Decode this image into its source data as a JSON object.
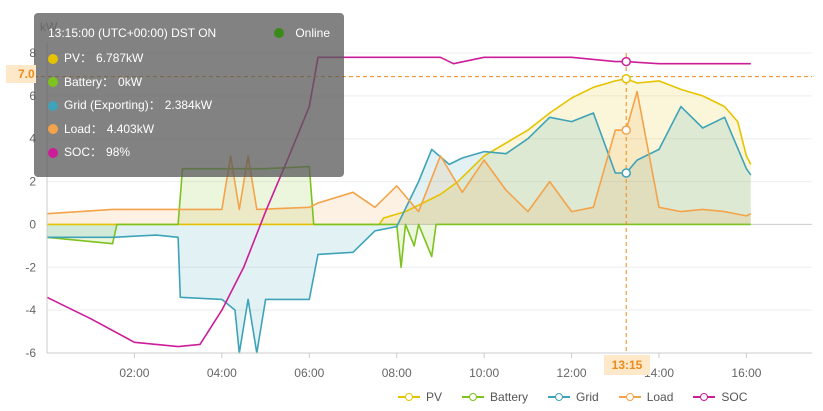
{
  "chart_data": {
    "type": "line",
    "y_unit": "kW",
    "ylim": [
      -6,
      8
    ],
    "y_ticks": [
      "8",
      "6",
      "4",
      "2",
      "0",
      "-2",
      "-4",
      "-6"
    ],
    "x_ticks": [
      "02:00",
      "04:00",
      "06:00",
      "08:00",
      "10:00",
      "12:00",
      "14:00",
      "16:00"
    ],
    "grid": true,
    "legend_position": "bottom",
    "series": [
      {
        "name": "PV",
        "color": "#e6c300",
        "points": [
          [
            0,
            0
          ],
          [
            3,
            0
          ],
          [
            6,
            0
          ],
          [
            7.6,
            0
          ],
          [
            7.7,
            0.3
          ],
          [
            8.2,
            0.6
          ],
          [
            8.6,
            1.0
          ],
          [
            9.0,
            1.4
          ],
          [
            9.4,
            2.0
          ],
          [
            10,
            3.2
          ],
          [
            10.5,
            3.8
          ],
          [
            11,
            4.4
          ],
          [
            11.5,
            5.2
          ],
          [
            12,
            5.9
          ],
          [
            12.5,
            6.4
          ],
          [
            13,
            6.7
          ],
          [
            13.25,
            6.8
          ],
          [
            13.5,
            6.6
          ],
          [
            14,
            6.7
          ],
          [
            14.5,
            6.3
          ],
          [
            15,
            6.0
          ],
          [
            15.5,
            5.5
          ],
          [
            15.8,
            4.8
          ],
          [
            16,
            3.2
          ],
          [
            16.1,
            2.8
          ]
        ]
      },
      {
        "name": "Battery",
        "color": "#7dc21e",
        "points": [
          [
            0,
            -0.6
          ],
          [
            1.5,
            -0.9
          ],
          [
            1.6,
            0
          ],
          [
            3,
            0
          ],
          [
            3.1,
            2.6
          ],
          [
            5,
            2.6
          ],
          [
            6,
            2.7
          ],
          [
            6.1,
            0
          ],
          [
            8,
            0
          ],
          [
            8.1,
            -2.0
          ],
          [
            8.2,
            0
          ],
          [
            8.4,
            -1.0
          ],
          [
            8.5,
            0
          ],
          [
            8.8,
            -1.5
          ],
          [
            8.9,
            0
          ],
          [
            16.1,
            0
          ]
        ]
      },
      {
        "name": "Grid",
        "color": "#3ea3b8",
        "points": [
          [
            0,
            -0.6
          ],
          [
            1.5,
            -0.6
          ],
          [
            2.5,
            -0.5
          ],
          [
            3,
            -0.6
          ],
          [
            3.05,
            -3.4
          ],
          [
            4,
            -3.5
          ],
          [
            4.3,
            -4.0
          ],
          [
            4.4,
            -6.0
          ],
          [
            4.6,
            -3.5
          ],
          [
            4.8,
            -6.0
          ],
          [
            5,
            -3.5
          ],
          [
            6,
            -3.5
          ],
          [
            6.2,
            -1.4
          ],
          [
            7,
            -1.3
          ],
          [
            7.5,
            -0.3
          ],
          [
            8,
            -0.1
          ],
          [
            8.5,
            2.0
          ],
          [
            8.8,
            3.5
          ],
          [
            9.2,
            2.8
          ],
          [
            9.5,
            3.1
          ],
          [
            10,
            3.4
          ],
          [
            10.5,
            3.3
          ],
          [
            11,
            4.0
          ],
          [
            11.5,
            5.0
          ],
          [
            12,
            4.8
          ],
          [
            12.5,
            5.2
          ],
          [
            13,
            2.4
          ],
          [
            13.25,
            2.4
          ],
          [
            13.5,
            3.0
          ],
          [
            14,
            3.5
          ],
          [
            14.5,
            5.5
          ],
          [
            15,
            4.5
          ],
          [
            15.5,
            5.0
          ],
          [
            16,
            2.6
          ],
          [
            16.1,
            2.3
          ]
        ]
      },
      {
        "name": "Load",
        "color": "#f3a34a",
        "points": [
          [
            0,
            0.5
          ],
          [
            1.5,
            0.7
          ],
          [
            3,
            0.7
          ],
          [
            3.1,
            0.7
          ],
          [
            4,
            0.7
          ],
          [
            4.2,
            3.2
          ],
          [
            4.4,
            0.7
          ],
          [
            4.6,
            3.2
          ],
          [
            4.8,
            0.7
          ],
          [
            6,
            0.8
          ],
          [
            6.2,
            1.0
          ],
          [
            7,
            1.5
          ],
          [
            7.5,
            0.8
          ],
          [
            8,
            1.8
          ],
          [
            8.5,
            0.6
          ],
          [
            9,
            3.2
          ],
          [
            9.5,
            1.5
          ],
          [
            10,
            3.0
          ],
          [
            10.5,
            1.6
          ],
          [
            11,
            0.6
          ],
          [
            11.5,
            2.0
          ],
          [
            12,
            0.6
          ],
          [
            12.5,
            0.8
          ],
          [
            13,
            4.4
          ],
          [
            13.25,
            4.4
          ],
          [
            13.5,
            6.2
          ],
          [
            14,
            0.8
          ],
          [
            14.5,
            0.6
          ],
          [
            15,
            0.7
          ],
          [
            15.5,
            0.6
          ],
          [
            16,
            0.4
          ],
          [
            16.1,
            0.5
          ]
        ]
      },
      {
        "name": "SOC",
        "color": "#cc1d99",
        "points": [
          [
            0,
            -3.4
          ],
          [
            1,
            -4.4
          ],
          [
            2,
            -5.5
          ],
          [
            3,
            -5.7
          ],
          [
            3.5,
            -5.6
          ],
          [
            4,
            -4.0
          ],
          [
            4.5,
            -2.0
          ],
          [
            5,
            0.6
          ],
          [
            5.5,
            3.0
          ],
          [
            6,
            5.5
          ],
          [
            6.2,
            7.8
          ],
          [
            6.7,
            7.8
          ],
          [
            7,
            7.8
          ],
          [
            9,
            7.8
          ],
          [
            9.3,
            7.5
          ],
          [
            10,
            7.8
          ],
          [
            11,
            7.8
          ],
          [
            12,
            7.8
          ],
          [
            13,
            7.6
          ],
          [
            13.25,
            7.6
          ],
          [
            14,
            7.5
          ],
          [
            16.1,
            7.5
          ]
        ]
      }
    ]
  },
  "tooltip": {
    "time": "13:15:00 (UTC+00:00) DST ON",
    "status": "Online",
    "status_color": "#3a8a1a",
    "rows": [
      {
        "color": "#e6c300",
        "label": "PV：",
        "value": "6.787kW"
      },
      {
        "color": "#7dc21e",
        "label": "Battery：",
        "value": "0kW"
      },
      {
        "color": "#3ea3b8",
        "label": "Grid (Exporting)：",
        "value": "2.384kW"
      },
      {
        "color": "#f3a34a",
        "label": "Load：",
        "value": "4.403kW"
      },
      {
        "color": "#cc1d99",
        "label": "SOC：",
        "value": "98%"
      }
    ]
  },
  "crosshair": {
    "x_label": "13:15",
    "y_label": "7.0",
    "x_value": 13.25,
    "y_value": 6.9
  }
}
